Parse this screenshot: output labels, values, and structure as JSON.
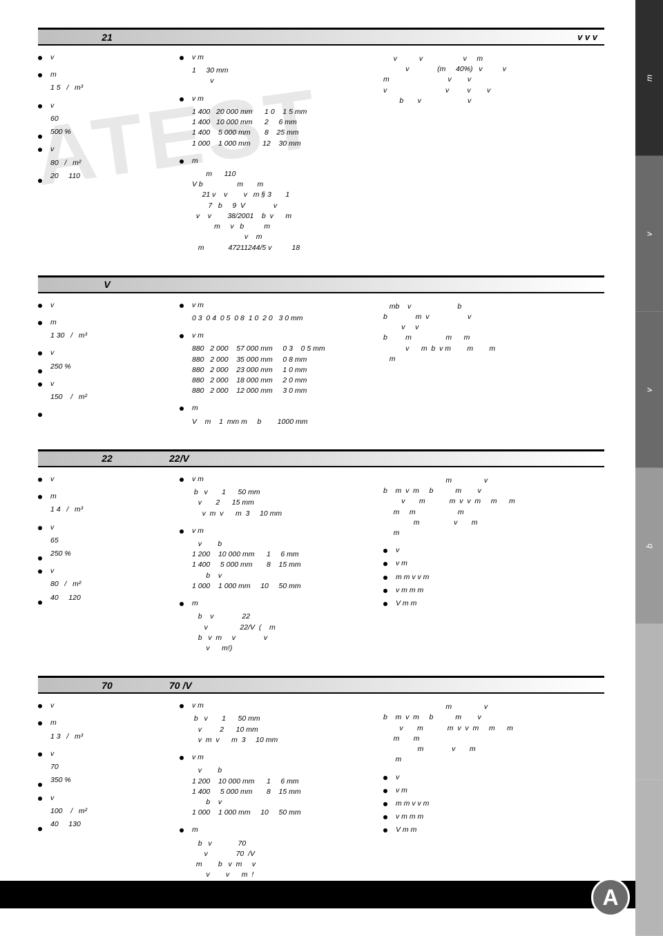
{
  "watermark": "ATEST",
  "sidebar": [
    {
      "label": "m",
      "cls": "dark"
    },
    {
      "label": "v",
      "cls": "mid"
    },
    {
      "label": "v",
      "cls": "mid"
    },
    {
      "label": "b",
      "cls": "light"
    },
    {
      "label": "",
      "cls": "pale"
    },
    {
      "label": "",
      "cls": "pale"
    }
  ],
  "badge": "A",
  "sections": [
    {
      "title1": "21",
      "title2": "",
      "title_right": "v   v     v",
      "left": [
        {
          "txt": "v"
        },
        {
          "txt": "m",
          "sub": "1 5   /   m³"
        },
        {
          "txt": "v",
          "sub": "60"
        },
        {
          "txt": " ",
          "sub": "500 %"
        },
        {
          "txt": "v",
          "sub": "80   /   m²"
        },
        {
          "txt": " ",
          "sub": "20     110"
        }
      ],
      "mid": [
        {
          "txt": "v       m",
          "sub": "1     30 mm\n         v"
        },
        {
          "txt": "v    m",
          "sub": "1 400   20 000 mm      1 0    1 5 mm\n1 400   10 000 mm      2     6 mm\n1 400    5 000 mm       8    25 mm\n1 000    1 000 mm      12    30 mm"
        },
        {
          "txt": "m",
          "sub": "       m      110\nV b                 m       m\n     21 v    v        v   m § 3       1\n        7   b     9  V              v\n  v    v        38/2001    b  v      m\n           m     v   b          m\n                          v    m\n   m            47211244/5 v          18"
        }
      ],
      "right": "     v           v                    v     m\n           v              (m     40%)   v          v\nm                             v        v\nv                             v         v        v\n        b       v                       v"
    },
    {
      "title1": "V",
      "title2": "",
      "title_right": "",
      "left": [
        {
          "txt": "v"
        },
        {
          "txt": "m",
          "sub": "1 30   /   m³"
        },
        {
          "txt": "v"
        },
        {
          "txt": " ",
          "sub": "250 %"
        },
        {
          "txt": "v",
          "sub": "150    /   m²"
        },
        {
          "txt": " "
        }
      ],
      "mid": [
        {
          "txt": "v    m",
          "sub": "0 3  0 4  0 5  0 8  1 0  2 0   3 0 mm"
        },
        {
          "txt": "v    m",
          "sub": "880   2 000    57 000 mm     0 3    0 5 mm\n880   2 000    35 000 mm     0 8 mm\n880   2 000    23 000 mm     1 0 mm\n880   2 000    18 000 mm     2 0 mm\n880   2 000    12 000 mm     3 0 mm"
        },
        {
          "txt": "m",
          "sub": "V    m    1  mm m     b        1000 mm"
        }
      ],
      "right": "   mb    v                       b\nb              m  v                   v\n         v     v\nb         m                 m      m\n           v      m  b  v m        m        m\n   m"
    },
    {
      "title1": "22",
      "title2": "22/V",
      "title_right": "",
      "left": [
        {
          "txt": "v"
        },
        {
          "txt": "m",
          "sub": "1 4   /   m³"
        },
        {
          "txt": "v",
          "sub": "65"
        },
        {
          "txt": " ",
          "sub": "250 %"
        },
        {
          "txt": "v",
          "sub": "80   /   m²"
        },
        {
          "txt": " ",
          "sub": "40     120"
        }
      ],
      "mid": [
        {
          "txt": "v     m",
          "sub": " b   v       1      50 mm\n   v       2      15 mm\n     v  m  v      m  3     10 mm"
        },
        {
          "txt": "v    m",
          "sub": "   v        b\n1 200    10 000 mm      1     6 mm\n1 400     5 000 mm       8    15 mm\n       b    v\n1 000    1 000 mm     10     50 mm"
        },
        {
          "txt": "m",
          "sub": "   b    v              22\n      v                22/V  (    m\n   b   v  m     v              v\n       v      m!)"
        }
      ],
      "right": "                               m                v\nb    m  v  m     b           m        v\n         v       m            m  v  v  m     m      m\n     m     m                     m\n               m                 v       m\n     m",
      "right_bullets": [
        "    v",
        "   v  m",
        "m          m v  v  m",
        "   v  m      m       m",
        "V      m        m"
      ]
    },
    {
      "title1": "70",
      "title2": "70  /V",
      "title_right": "",
      "left": [
        {
          "txt": "v"
        },
        {
          "txt": "m",
          "sub": "1 3   /   m³"
        },
        {
          "txt": "v",
          "sub": "70"
        },
        {
          "txt": " ",
          "sub": "350 %"
        },
        {
          "txt": "v",
          "sub": "100    /   m²"
        },
        {
          "txt": " ",
          "sub": "40     130"
        }
      ],
      "mid": [
        {
          "txt": "v     m",
          "sub": " b   v       1      50 mm\n   v         2      10 mm\n   v  m  v      m  3     10 mm"
        },
        {
          "txt": "v    m",
          "sub": "   v        b\n1 200    10 000 mm      1     6 mm\n1 400     5 000 mm       8    15 mm\n       b    v\n1 000    1 000 mm     10     50 mm"
        },
        {
          "txt": "m",
          "sub": "   b   v             70\n      v              70  /V\n  m        b   v  m     v\n       v        v      m  !"
        }
      ],
      "right": "                               m                v\nb    m  v  m     b           m        v\n        v       m            m  v  v  m     m      m\n     m       m\n                 m              v       m\n      m",
      "right_bullets": [
        "    v",
        "   v  m",
        "m          m v  v  m",
        "   v  m      m       m",
        "V      m        m"
      ]
    }
  ]
}
